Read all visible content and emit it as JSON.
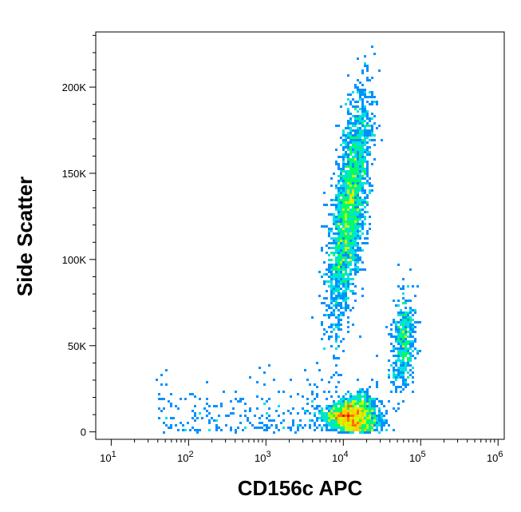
{
  "chart_data": {
    "type": "scatter",
    "title": "",
    "xlabel": "CD156c APC",
    "ylabel": "Side Scatter",
    "x_scale": "log",
    "x_range": [
      10,
      1000000
    ],
    "y_range": [
      0,
      230000
    ],
    "x_ticks": [
      {
        "value": 10,
        "base": "10",
        "exp": "1"
      },
      {
        "value": 100,
        "base": "10",
        "exp": "2"
      },
      {
        "value": 1000,
        "base": "10",
        "exp": "3"
      },
      {
        "value": 10000,
        "base": "10",
        "exp": "4"
      },
      {
        "value": 100000,
        "base": "10",
        "exp": "5"
      },
      {
        "value": 1000000,
        "base": "10",
        "exp": "6"
      }
    ],
    "y_ticks": [
      {
        "value": 0,
        "label": "0"
      },
      {
        "value": 50000,
        "label": "50K"
      },
      {
        "value": 100000,
        "label": "100K"
      },
      {
        "value": 150000,
        "label": "150K"
      },
      {
        "value": 200000,
        "label": "200K"
      }
    ],
    "grid": false,
    "legend": "none",
    "density_colors": [
      "#0000ff",
      "#0090ff",
      "#00e0e0",
      "#00ff60",
      "#c8ff00",
      "#ffd000",
      "#ff7000",
      "#ff0000"
    ],
    "populations": [
      {
        "name": "",
        "center_x": 12000,
        "center_y": 130000,
        "log_spread_x": 0.1,
        "spread_y": 32000,
        "count": 2600
      },
      {
        "name": "",
        "center_x": 13000,
        "center_y": 9000,
        "log_spread_x": 0.16,
        "spread_y": 5500,
        "count": 2000
      },
      {
        "name": "",
        "center_x": 60000,
        "center_y": 52000,
        "log_spread_x": 0.07,
        "spread_y": 14000,
        "count": 500
      }
    ]
  }
}
